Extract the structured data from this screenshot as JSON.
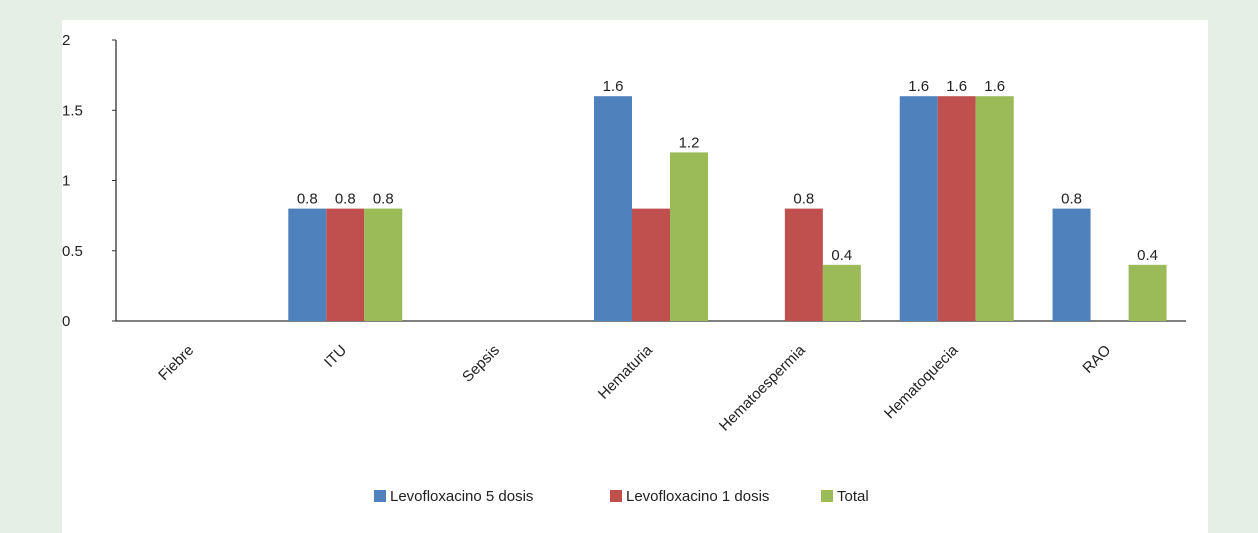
{
  "chart_data": {
    "type": "bar",
    "title": "",
    "xlabel": "",
    "ylabel": "",
    "ylim": [
      0,
      2
    ],
    "yticks": [
      0,
      0.5,
      1,
      1.5,
      2
    ],
    "ytick_labels": [
      "0",
      "0.5",
      "1",
      "1.5",
      "2"
    ],
    "grid": false,
    "legend_position": "bottom",
    "categories": [
      "Fiebre",
      "ITU",
      "Sepsis",
      "Hematuria",
      "Hematoespermia",
      "Hematoquecia",
      "RAO"
    ],
    "series": [
      {
        "name": "Levofloxacino 5 dosis",
        "color": "#4f81bd",
        "values": [
          null,
          0.8,
          null,
          1.6,
          null,
          1.6,
          0.8
        ],
        "labels": [
          "",
          "0.8",
          "",
          "1.6",
          "",
          "1.6",
          "0.8"
        ]
      },
      {
        "name": "Levofloxacino 1 dosis",
        "color": "#c0504d",
        "values": [
          null,
          0.8,
          null,
          0.8,
          0.8,
          1.6,
          null
        ],
        "labels": [
          "",
          "0.8",
          "",
          "",
          "0.8",
          "1.6",
          ""
        ]
      },
      {
        "name": "Total",
        "color": "#9bbb59",
        "values": [
          null,
          0.8,
          null,
          1.2,
          0.4,
          1.6,
          0.4
        ],
        "labels": [
          "",
          "0.8",
          "",
          "1.2",
          "0.4",
          "1.6",
          "0.4"
        ]
      }
    ]
  }
}
